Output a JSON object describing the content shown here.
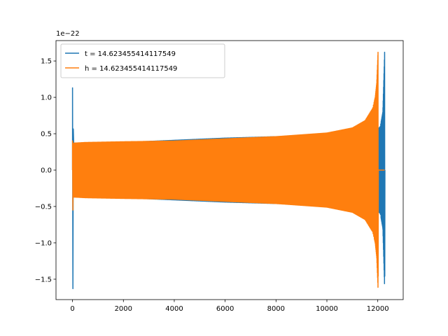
{
  "chart_data": {
    "type": "line",
    "title": "",
    "xlabel": "",
    "ylabel": "",
    "y_offset_label": "1e−22",
    "xlim": [
      -650,
      13000
    ],
    "ylim": [
      -1.78,
      1.78
    ],
    "x_ticks": [
      0,
      2000,
      4000,
      6000,
      8000,
      10000,
      12000
    ],
    "x_tick_labels": [
      "0",
      "2000",
      "4000",
      "6000",
      "8000",
      "10000",
      "12000"
    ],
    "y_ticks": [
      -1.5,
      -1.0,
      -0.5,
      0.0,
      0.5,
      1.0,
      1.5
    ],
    "y_tick_labels": [
      "−1.5",
      "−1.0",
      "−0.5",
      "0.0",
      "0.5",
      "1.0",
      "1.5"
    ],
    "grid": false,
    "legend_position": "top-left",
    "series": [
      {
        "name": "t = 14.623455414117549",
        "color": "#1f77b4",
        "note_shape": "oscillating chirp",
        "x_start": 0,
        "x_merger": 12270,
        "x_end": 12270,
        "initial_spike": {
          "x": 0,
          "min": -1.63,
          "max": 1.13
        },
        "envelope_x": [
          0,
          500,
          2000,
          4000,
          6000,
          8000,
          10000,
          11000,
          11500,
          11900,
          12100,
          12200,
          12270
        ],
        "envelope_amp": [
          0.37,
          0.37,
          0.38,
          0.41,
          0.44,
          0.46,
          0.47,
          0.47,
          0.5,
          0.52,
          0.6,
          0.8,
          1.62
        ]
      },
      {
        "name": "h = 14.623455414117549",
        "color": "#ff7f0e",
        "x_start": 0,
        "x_merger": 12010,
        "x_end": 12270,
        "initial_spike": {
          "x": 0,
          "min": -0.55,
          "max": 0.4
        },
        "envelope_x": [
          0,
          500,
          2000,
          4000,
          6000,
          8000,
          10000,
          11000,
          11500,
          11800,
          11900,
          11960,
          12010
        ],
        "envelope_amp": [
          0.37,
          0.38,
          0.39,
          0.4,
          0.43,
          0.46,
          0.51,
          0.58,
          0.68,
          0.85,
          1.0,
          1.2,
          1.62
        ],
        "post_merger_value": 0.0
      }
    ]
  }
}
